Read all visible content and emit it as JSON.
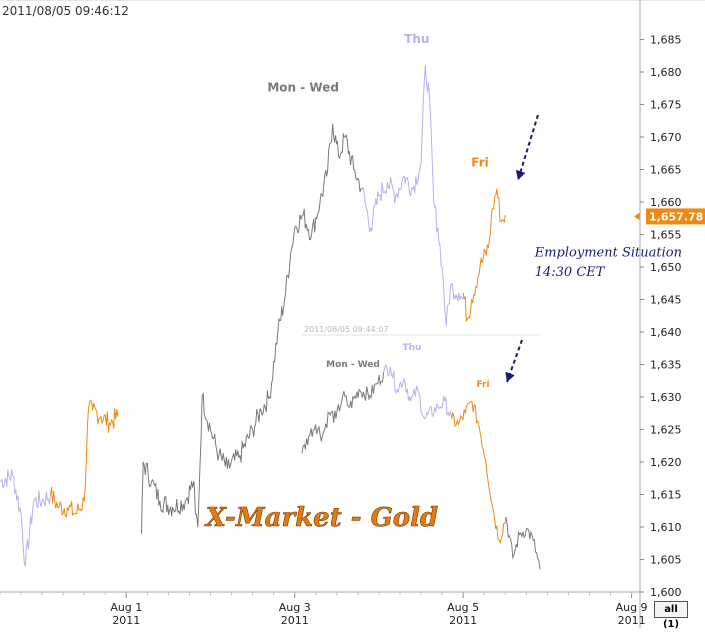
{
  "timestamp": "2011/08/05 09:46:12",
  "range_button": {
    "label_prefix": "all",
    "label_count": "(1)"
  },
  "colors": {
    "mon_wed": "#7a7a7a",
    "thu": "#b6b2ee",
    "fri": "#ee8a12",
    "arrow": "#1a1a7a",
    "axis": "#aaaaaa",
    "price_marker": "#ee8a12"
  },
  "chart_data": {
    "type": "line",
    "title": "X-Market - Gold",
    "xlabel": "",
    "ylabel": "",
    "ylim": [
      1600,
      1688
    ],
    "y_ticks": [
      "1,600",
      "1,605",
      "1,610",
      "1,615",
      "1,620",
      "1,625",
      "1,630",
      "1,635",
      "1,640",
      "1,645",
      "1,650",
      "1,655",
      "1,660",
      "1,665",
      "1,670",
      "1,675",
      "1,680",
      "1,685"
    ],
    "y_tick_values": [
      1600,
      1605,
      1610,
      1615,
      1620,
      1625,
      1630,
      1635,
      1640,
      1645,
      1650,
      1655,
      1660,
      1665,
      1670,
      1675,
      1680,
      1685
    ],
    "x_ticks": [
      {
        "label": "Aug 1",
        "year": "2011",
        "t": 1.0
      },
      {
        "label": "Aug 3",
        "year": "2011",
        "t": 3.0
      },
      {
        "label": "Aug 5",
        "year": "2011",
        "t": 5.0
      },
      {
        "label": "Aug 9",
        "year": "2011",
        "t": 7.0
      }
    ],
    "xlim": [
      -0.5,
      7.1
    ],
    "last_price_label": "1,657.78",
    "last_price": 1657.78,
    "series": [
      {
        "segment": "prior-thu",
        "color": "thu",
        "points": [
          [
            -0.5,
            1617
          ],
          [
            -0.35,
            1618
          ],
          [
            -0.25,
            1612
          ],
          [
            -0.2,
            1604
          ],
          [
            -0.1,
            1614
          ],
          [
            0.0,
            1614
          ],
          [
            0.1,
            1615
          ]
        ]
      },
      {
        "segment": "prior-fri",
        "color": "fri",
        "points": [
          [
            0.1,
            1615
          ],
          [
            0.2,
            1613
          ],
          [
            0.3,
            1613
          ],
          [
            0.4,
            1612
          ],
          [
            0.5,
            1614
          ],
          [
            0.55,
            1628
          ],
          [
            0.6,
            1628
          ],
          [
            0.7,
            1627
          ],
          [
            0.8,
            1626
          ],
          [
            0.9,
            1627
          ]
        ]
      },
      {
        "segment": "mon-tue",
        "color": "mon_wed",
        "points": [
          [
            1.18,
            1609
          ],
          [
            1.2,
            1620
          ],
          [
            1.3,
            1617
          ],
          [
            1.4,
            1614
          ],
          [
            1.55,
            1613
          ],
          [
            1.7,
            1614
          ],
          [
            1.8,
            1617
          ],
          [
            1.82,
            1612
          ],
          [
            1.85,
            1610
          ],
          [
            1.9,
            1630
          ],
          [
            2.0,
            1625
          ],
          [
            2.1,
            1621
          ],
          [
            2.2,
            1619
          ],
          [
            2.35,
            1621
          ],
          [
            2.5,
            1625
          ],
          [
            2.6,
            1628
          ],
          [
            2.7,
            1630
          ],
          [
            2.8,
            1640
          ],
          [
            2.88,
            1645
          ],
          [
            2.95,
            1652
          ],
          [
            3.0,
            1656
          ],
          [
            3.1,
            1658
          ],
          [
            3.2,
            1655
          ],
          [
            3.3,
            1660
          ],
          [
            3.38,
            1664
          ],
          [
            3.45,
            1672
          ],
          [
            3.52,
            1667
          ],
          [
            3.6,
            1670
          ],
          [
            3.7,
            1665
          ],
          [
            3.8,
            1662
          ]
        ]
      },
      {
        "segment": "wed-thu",
        "color": "thu",
        "points": [
          [
            3.8,
            1662
          ],
          [
            3.9,
            1656
          ],
          [
            4.0,
            1661
          ],
          [
            4.1,
            1663
          ],
          [
            4.2,
            1661
          ],
          [
            4.3,
            1664
          ],
          [
            4.4,
            1662
          ],
          [
            4.5,
            1666
          ],
          [
            4.55,
            1681
          ],
          [
            4.6,
            1676
          ],
          [
            4.65,
            1660
          ],
          [
            4.7,
            1656
          ],
          [
            4.75,
            1650
          ],
          [
            4.8,
            1641
          ],
          [
            4.85,
            1647
          ],
          [
            4.95,
            1646
          ],
          [
            5.0,
            1645
          ]
        ]
      },
      {
        "segment": "fri",
        "color": "fri",
        "points": [
          [
            5.0,
            1646
          ],
          [
            5.05,
            1642
          ],
          [
            5.1,
            1645
          ],
          [
            5.2,
            1650
          ],
          [
            5.3,
            1653
          ],
          [
            5.35,
            1659
          ],
          [
            5.4,
            1662
          ],
          [
            5.45,
            1657
          ],
          [
            5.5,
            1658
          ]
        ]
      }
    ],
    "annotations": [
      {
        "text": "Mon - Wed",
        "color": "mon_wed",
        "t": 3.1,
        "v": 1677
      },
      {
        "text": "Thu",
        "color": "thu",
        "t": 4.45,
        "v": 1684.5
      },
      {
        "text": "Fri",
        "color": "fri",
        "t": 5.2,
        "v": 1665.5
      },
      {
        "text": "Employment Situation",
        "color": "arrow",
        "t": 5.85,
        "v": 1651.6,
        "italic": true
      },
      {
        "text": "14:30 CET",
        "color": "arrow",
        "t": 5.85,
        "v": 1648.6,
        "italic": true
      }
    ],
    "inset": {
      "timestamp": "2011/08/05 09:44:07",
      "labels": [
        {
          "text": "Mon - Wed",
          "color": "mon_wed"
        },
        {
          "text": "Thu",
          "color": "thu"
        },
        {
          "text": "Fri",
          "color": "fri"
        }
      ],
      "segments": [
        {
          "color": "mon_wed",
          "points": [
            [
              0.0,
              1621
            ],
            [
              0.05,
              1624
            ],
            [
              0.1,
              1626
            ],
            [
              0.15,
              1624
            ],
            [
              0.2,
              1628
            ],
            [
              0.25,
              1627
            ],
            [
              0.3,
              1631
            ],
            [
              0.35,
              1629
            ],
            [
              0.42,
              1632
            ],
            [
              0.5,
              1631
            ],
            [
              0.55,
              1633
            ],
            [
              0.6,
              1635
            ]
          ]
        },
        {
          "color": "thu",
          "points": [
            [
              0.6,
              1635
            ],
            [
              0.65,
              1636
            ],
            [
              0.7,
              1632
            ],
            [
              0.75,
              1634
            ],
            [
              0.8,
              1630
            ],
            [
              0.85,
              1632
            ],
            [
              0.9,
              1627
            ],
            [
              1.0,
              1629
            ],
            [
              1.05,
              1630
            ],
            [
              1.1,
              1627
            ]
          ]
        },
        {
          "color": "fri",
          "points": [
            [
              1.1,
              1627
            ],
            [
              1.15,
              1626
            ],
            [
              1.2,
              1628
            ],
            [
              1.25,
              1630
            ],
            [
              1.3,
              1626
            ],
            [
              1.35,
              1620
            ],
            [
              1.4,
              1612
            ],
            [
              1.45,
              1606
            ],
            [
              1.5,
              1610
            ]
          ]
        },
        {
          "color": "mon_wed",
          "points": [
            [
              1.5,
              1610
            ],
            [
              1.55,
              1603
            ],
            [
              1.6,
              1607
            ],
            [
              1.65,
              1608
            ],
            [
              1.7,
              1606
            ],
            [
              1.75,
              1601
            ]
          ]
        }
      ]
    }
  }
}
